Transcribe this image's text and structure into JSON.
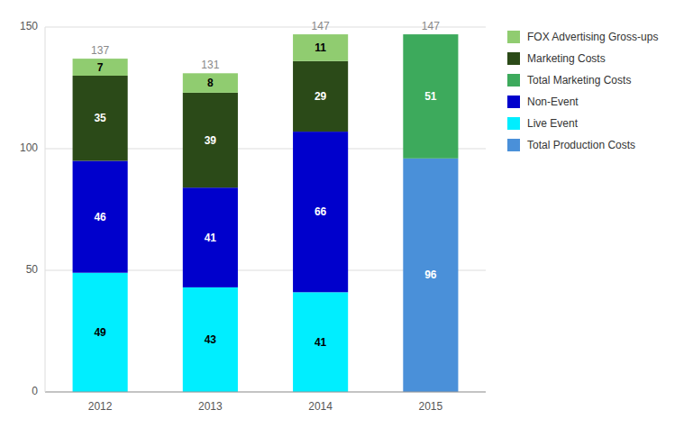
{
  "chart_data": {
    "type": "bar",
    "stacked": true,
    "categories": [
      "2012",
      "2013",
      "2014",
      "2015"
    ],
    "series": [
      {
        "name": "FOX Advertising Gross-ups",
        "color": "#90CC70",
        "values": [
          7,
          8,
          11,
          null
        ]
      },
      {
        "name": "Marketing Costs",
        "color": "#2B4A18",
        "values": [
          35,
          39,
          29,
          null
        ]
      },
      {
        "name": "Total Marketing Costs",
        "color": "#3DAA5C",
        "values": [
          null,
          null,
          null,
          51
        ]
      },
      {
        "name": "Non-Event",
        "color": "#0000CC",
        "values": [
          46,
          41,
          66,
          null
        ]
      },
      {
        "name": "Live Event",
        "color": "#00EEFF",
        "values": [
          49,
          43,
          41,
          null
        ]
      },
      {
        "name": "Total Production Costs",
        "color": "#4A90D9",
        "values": [
          null,
          null,
          null,
          96
        ]
      }
    ],
    "totals": [
      137,
      131,
      147,
      147
    ],
    "ylim": [
      0,
      150
    ],
    "yticks": [
      0,
      50,
      100,
      150
    ],
    "grid": true,
    "legend": "right",
    "data_labels": true
  }
}
